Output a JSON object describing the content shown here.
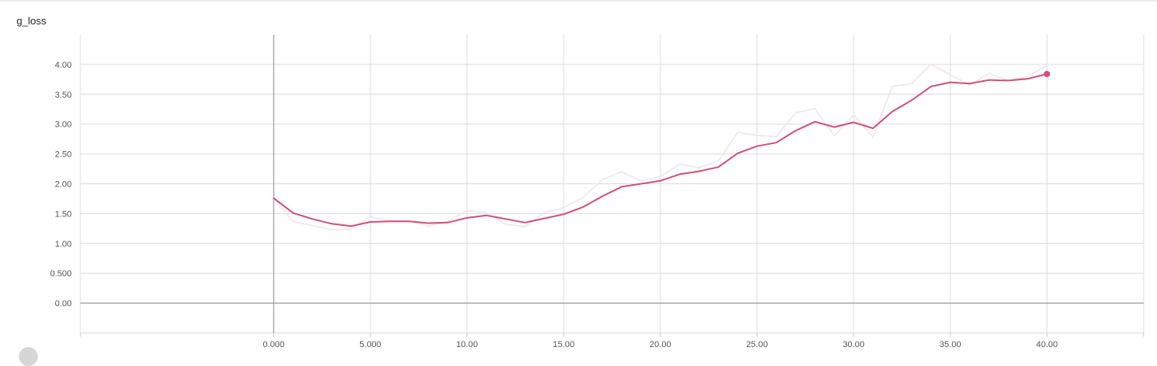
{
  "chart_data": {
    "type": "line",
    "title": "g_loss",
    "xlabel": "",
    "ylabel": "",
    "xlim": [
      -10,
      45
    ],
    "ylim": [
      -0.5,
      4.5
    ],
    "x_ticks": [
      "0.000",
      "5.000",
      "10.00",
      "15.00",
      "20.00",
      "25.00",
      "30.00",
      "35.00",
      "40.00"
    ],
    "y_ticks": [
      "0.00",
      "0.500",
      "1.00",
      "1.50",
      "2.00",
      "2.50",
      "3.00",
      "3.50",
      "4.00"
    ],
    "grid": true,
    "series": [
      {
        "role": "raw",
        "color": "#ece6ea",
        "x": [
          0,
          1,
          2,
          3,
          4,
          5,
          6,
          7,
          8,
          9,
          10,
          11,
          12,
          13,
          14,
          15,
          16,
          17,
          18,
          19,
          20,
          21,
          22,
          23,
          24,
          25,
          26,
          27,
          28,
          29,
          30,
          31,
          32,
          33,
          34,
          35,
          36,
          37,
          38,
          39,
          40
        ],
        "y": [
          1.76,
          1.37,
          1.3,
          1.23,
          1.24,
          1.45,
          1.38,
          1.38,
          1.29,
          1.37,
          1.55,
          1.52,
          1.32,
          1.28,
          1.52,
          1.6,
          1.77,
          2.07,
          2.2,
          2.05,
          2.12,
          2.33,
          2.27,
          2.38,
          2.86,
          2.81,
          2.79,
          3.19,
          3.26,
          2.8,
          3.16,
          2.78,
          3.63,
          3.68,
          4.0,
          3.83,
          3.66,
          3.85,
          3.73,
          3.8,
          3.98
        ]
      },
      {
        "role": "smoothed",
        "color": "#d14f7a",
        "x": [
          0,
          1,
          2,
          3,
          4,
          5,
          6,
          7,
          8,
          9,
          10,
          11,
          12,
          13,
          14,
          15,
          16,
          17,
          18,
          19,
          20,
          21,
          22,
          23,
          24,
          25,
          26,
          27,
          28,
          29,
          30,
          31,
          32,
          33,
          34,
          35,
          36,
          37,
          38,
          39,
          40
        ],
        "y": [
          1.76,
          1.51,
          1.41,
          1.33,
          1.29,
          1.36,
          1.37,
          1.37,
          1.34,
          1.35,
          1.43,
          1.47,
          1.41,
          1.35,
          1.42,
          1.49,
          1.61,
          1.79,
          1.95,
          2.0,
          2.05,
          2.16,
          2.21,
          2.28,
          2.51,
          2.63,
          2.69,
          2.89,
          3.04,
          2.95,
          3.03,
          2.93,
          3.21,
          3.4,
          3.63,
          3.7,
          3.68,
          3.74,
          3.73,
          3.76,
          3.84
        ]
      }
    ]
  }
}
